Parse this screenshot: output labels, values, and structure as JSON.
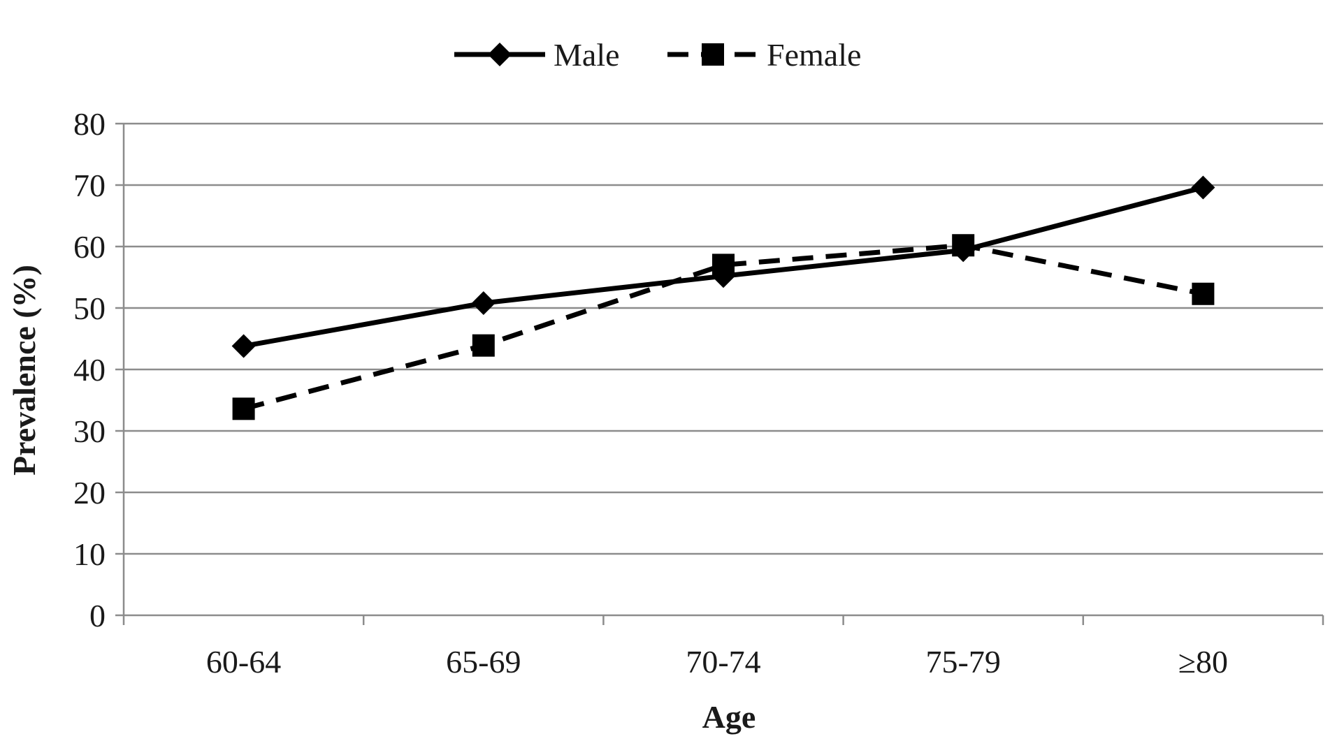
{
  "chart_data": {
    "type": "line",
    "title": "",
    "xlabel": "Age",
    "ylabel": "Prevalence (%)",
    "categories": [
      "60-64",
      "65-69",
      "70-74",
      "75-79",
      "≥80"
    ],
    "ylim": [
      0,
      80
    ],
    "yticks": [
      0,
      10,
      20,
      30,
      40,
      50,
      60,
      70,
      80
    ],
    "grid": true,
    "legend_position": "top",
    "series": [
      {
        "name": "Male",
        "values": [
          43.8,
          50.8,
          55.2,
          59.4,
          69.6
        ],
        "marker": "diamond",
        "line_style": "solid",
        "color": "#000000"
      },
      {
        "name": "Female",
        "values": [
          33.6,
          43.9,
          57.0,
          60.2,
          52.3
        ],
        "marker": "square",
        "line_style": "dashed",
        "color": "#000000"
      }
    ]
  }
}
